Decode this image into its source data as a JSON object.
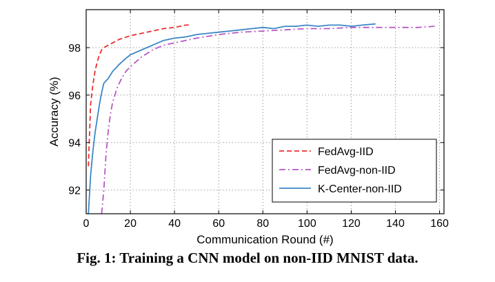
{
  "caption": "Fig. 1: Training a CNN model on non-IID MNIST data.",
  "chart_data": {
    "type": "line",
    "title": "",
    "xlabel": "Communication Round (#)",
    "ylabel": "Accuracy (%)",
    "xlim": [
      0,
      162
    ],
    "ylim": [
      91,
      99.6
    ],
    "xticks": [
      0,
      20,
      40,
      60,
      80,
      100,
      120,
      140,
      160
    ],
    "yticks": [
      92,
      94,
      96,
      98
    ],
    "grid": true,
    "legend_position": "bottom-right",
    "series": [
      {
        "name": "FedAvg-IID",
        "color": "#ee2c2c",
        "style": "dashed",
        "x": [
          1,
          2,
          3,
          4,
          5,
          6,
          7,
          8,
          10,
          12,
          15,
          20,
          25,
          30,
          35,
          40,
          45,
          47
        ],
        "y": [
          93.0,
          95.6,
          96.4,
          97.0,
          97.4,
          97.7,
          97.9,
          98.0,
          98.1,
          98.2,
          98.35,
          98.5,
          98.6,
          98.7,
          98.8,
          98.85,
          98.95,
          98.95
        ]
      },
      {
        "name": "FedAvg-non-IID",
        "color": "#b657c4",
        "style": "dashdot",
        "x": [
          7,
          8,
          9,
          10,
          11,
          12,
          14,
          16,
          18,
          20,
          25,
          30,
          35,
          40,
          50,
          60,
          70,
          80,
          90,
          100,
          110,
          120,
          130,
          140,
          150,
          158
        ],
        "y": [
          91.0,
          92.0,
          93.5,
          94.5,
          95.2,
          95.7,
          96.3,
          96.7,
          97.0,
          97.2,
          97.6,
          97.9,
          98.1,
          98.2,
          98.4,
          98.55,
          98.65,
          98.7,
          98.75,
          98.8,
          98.8,
          98.85,
          98.85,
          98.85,
          98.85,
          98.9
        ]
      },
      {
        "name": "K-Center-non-IID",
        "color": "#3b86c6",
        "style": "solid",
        "x": [
          1,
          2,
          3,
          4,
          5,
          6,
          7,
          8,
          10,
          12,
          15,
          18,
          20,
          25,
          30,
          35,
          40,
          45,
          50,
          55,
          60,
          65,
          70,
          75,
          80,
          85,
          90,
          95,
          100,
          105,
          110,
          115,
          120,
          125,
          131
        ],
        "y": [
          91.0,
          92.6,
          93.6,
          94.4,
          95.0,
          95.6,
          96.1,
          96.5,
          96.7,
          97.0,
          97.3,
          97.55,
          97.7,
          97.9,
          98.1,
          98.3,
          98.4,
          98.45,
          98.55,
          98.6,
          98.65,
          98.7,
          98.75,
          98.8,
          98.85,
          98.8,
          98.9,
          98.9,
          98.95,
          98.9,
          98.95,
          98.95,
          98.9,
          98.95,
          99.0
        ]
      }
    ]
  }
}
